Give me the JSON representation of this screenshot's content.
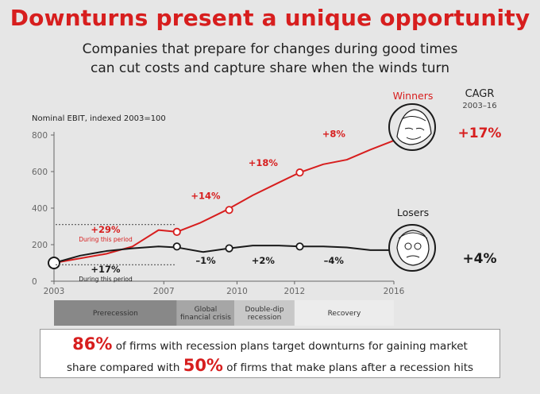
{
  "title": "Downturns present a unique opportunity",
  "subtitle_line1": "Companies that prepare for changes during good times",
  "subtitle_line2": "can cut costs and capture share when the winds turn",
  "colors": {
    "accent": "#d71e1e",
    "dark": "#1a1a1a",
    "background": "#e6e6e6"
  },
  "chart_data": {
    "type": "line",
    "ylabel": "Nominal EBIT, indexed 2003=100",
    "yticks": [
      0,
      200,
      400,
      600,
      800
    ],
    "xticks": [
      "2003",
      "2007",
      "2010",
      "2012",
      "2016"
    ],
    "xlim": [
      2003,
      2016
    ],
    "ylim": [
      0,
      800
    ],
    "series": [
      {
        "name": "Winners",
        "color": "#d71e1e",
        "x": [
          2003,
          2004,
          2005,
          2006,
          2007,
          2007.7,
          2008.6,
          2009.6,
          2010.6,
          2011.6,
          2012.4,
          2013.3,
          2014.2,
          2015.1,
          2016
        ],
        "values": [
          100,
          125,
          150,
          190,
          280,
          270,
          320,
          390,
          470,
          540,
          595,
          640,
          665,
          720,
          770
        ],
        "markers": [
          [
            2003,
            100
          ],
          [
            2007.7,
            270
          ],
          [
            2009.7,
            390
          ],
          [
            2012.4,
            595
          ]
        ]
      },
      {
        "name": "Losers",
        "color": "#1a1a1a",
        "x": [
          2003,
          2004,
          2005,
          2006,
          2007,
          2007.7,
          2008.7,
          2009.7,
          2010.6,
          2011.6,
          2012.4,
          2013.3,
          2014.2,
          2015.1,
          2016
        ],
        "values": [
          100,
          140,
          165,
          180,
          190,
          185,
          160,
          180,
          195,
          195,
          190,
          190,
          185,
          170,
          170
        ],
        "markers": [
          [
            2003,
            100
          ],
          [
            2007.7,
            190
          ],
          [
            2009.7,
            180
          ],
          [
            2012.4,
            190
          ]
        ]
      }
    ],
    "segment_labels": [
      {
        "series": "Winners",
        "text": "+14%",
        "x": 2008.8,
        "y": 450
      },
      {
        "series": "Winners",
        "text": "+18%",
        "x": 2011.0,
        "y": 630
      },
      {
        "series": "Winners",
        "text": "+8%",
        "x": 2013.7,
        "y": 790
      },
      {
        "series": "Losers",
        "text": "–1%",
        "x": 2008.8,
        "y": 95
      },
      {
        "series": "Losers",
        "text": "+2%",
        "x": 2011.0,
        "y": 95
      },
      {
        "series": "Losers",
        "text": "–4%",
        "x": 2013.7,
        "y": 95
      }
    ],
    "period_notes": [
      {
        "value": "+29%",
        "note": "During this period",
        "color": "#d71e1e",
        "y": 290
      },
      {
        "value": "+17%",
        "note": "During this period",
        "color": "#1a1a1a",
        "y": 80
      }
    ],
    "cagr_header": "CAGR",
    "cagr_range": "2003–16",
    "cagr": [
      {
        "series": "Winners",
        "value": "+17%",
        "color": "#d71e1e"
      },
      {
        "series": "Losers",
        "value": "+4%",
        "color": "#1a1a1a"
      }
    ],
    "phases": [
      {
        "label": "Prerecession",
        "start": 2003,
        "end": 2007.7,
        "fill": "#888888"
      },
      {
        "label": "Global\nfinancial crisis",
        "start": 2007.7,
        "end": 2009.9,
        "fill": "#a6a6a6"
      },
      {
        "label": "Double-dip\nrecession",
        "start": 2009.9,
        "end": 2012.2,
        "fill": "#c8c8c8"
      },
      {
        "label": "Recovery",
        "start": 2012.2,
        "end": 2016,
        "fill": "#ececec"
      }
    ]
  },
  "callout": {
    "stat1": "86%",
    "text1": "of firms with recession plans target downturns for gaining market",
    "text2_pre": "share compared with",
    "stat2": "50%",
    "text2_post": "of firms that make plans after a recession hits"
  }
}
